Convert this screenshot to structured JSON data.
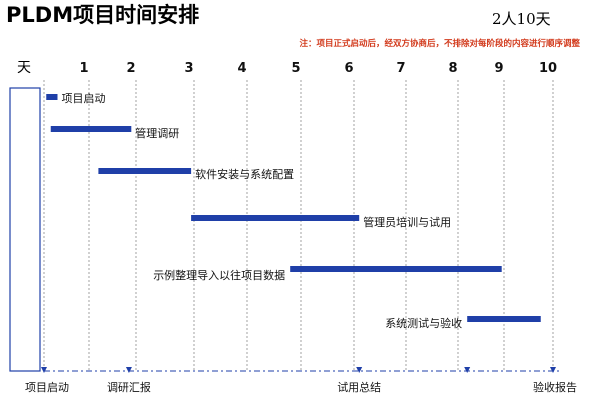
{
  "title": "PLDM项目时间安排",
  "staffing": "2人10天",
  "note": "注：项目正式启动后，经双方协商后，不排除对每阶段的内容进行顺序调整",
  "day_column_label": "天",
  "day_numbers": [
    "1",
    "2",
    "3",
    "4",
    "5",
    "6",
    "7",
    "8",
    "9",
    "10"
  ],
  "colors": {
    "bar": "#1f3fa8",
    "note": "#d23a1c",
    "grid": "#8c8c8c",
    "text": "#111111",
    "axis": "#1f3fa8"
  },
  "tasks": [
    {
      "label": "项目启动",
      "start_day": 0.05,
      "end_day": 0.3
    },
    {
      "label": "管理调研",
      "start_day": 0.15,
      "end_day": 1.9
    },
    {
      "label": "软件安装与系统配置",
      "start_day": 1.2,
      "end_day": 2.95
    },
    {
      "label": "管理员培训与试用",
      "start_day": 2.95,
      "end_day": 6.1
    },
    {
      "label": "示例整理导入以往项目数据",
      "start_day": 4.8,
      "end_day": 8.95
    },
    {
      "label": "系统测试与验收",
      "start_day": 8.2,
      "end_day": 9.75
    }
  ],
  "milestones": [
    {
      "label": "项目启动",
      "day": 0.0
    },
    {
      "label": "调研汇报",
      "day": 1.85
    },
    {
      "label": "试用总结",
      "day": 6.1
    },
    {
      "label": "",
      "day": 8.2
    },
    {
      "label": "验收报告",
      "day": 10.0
    }
  ]
}
